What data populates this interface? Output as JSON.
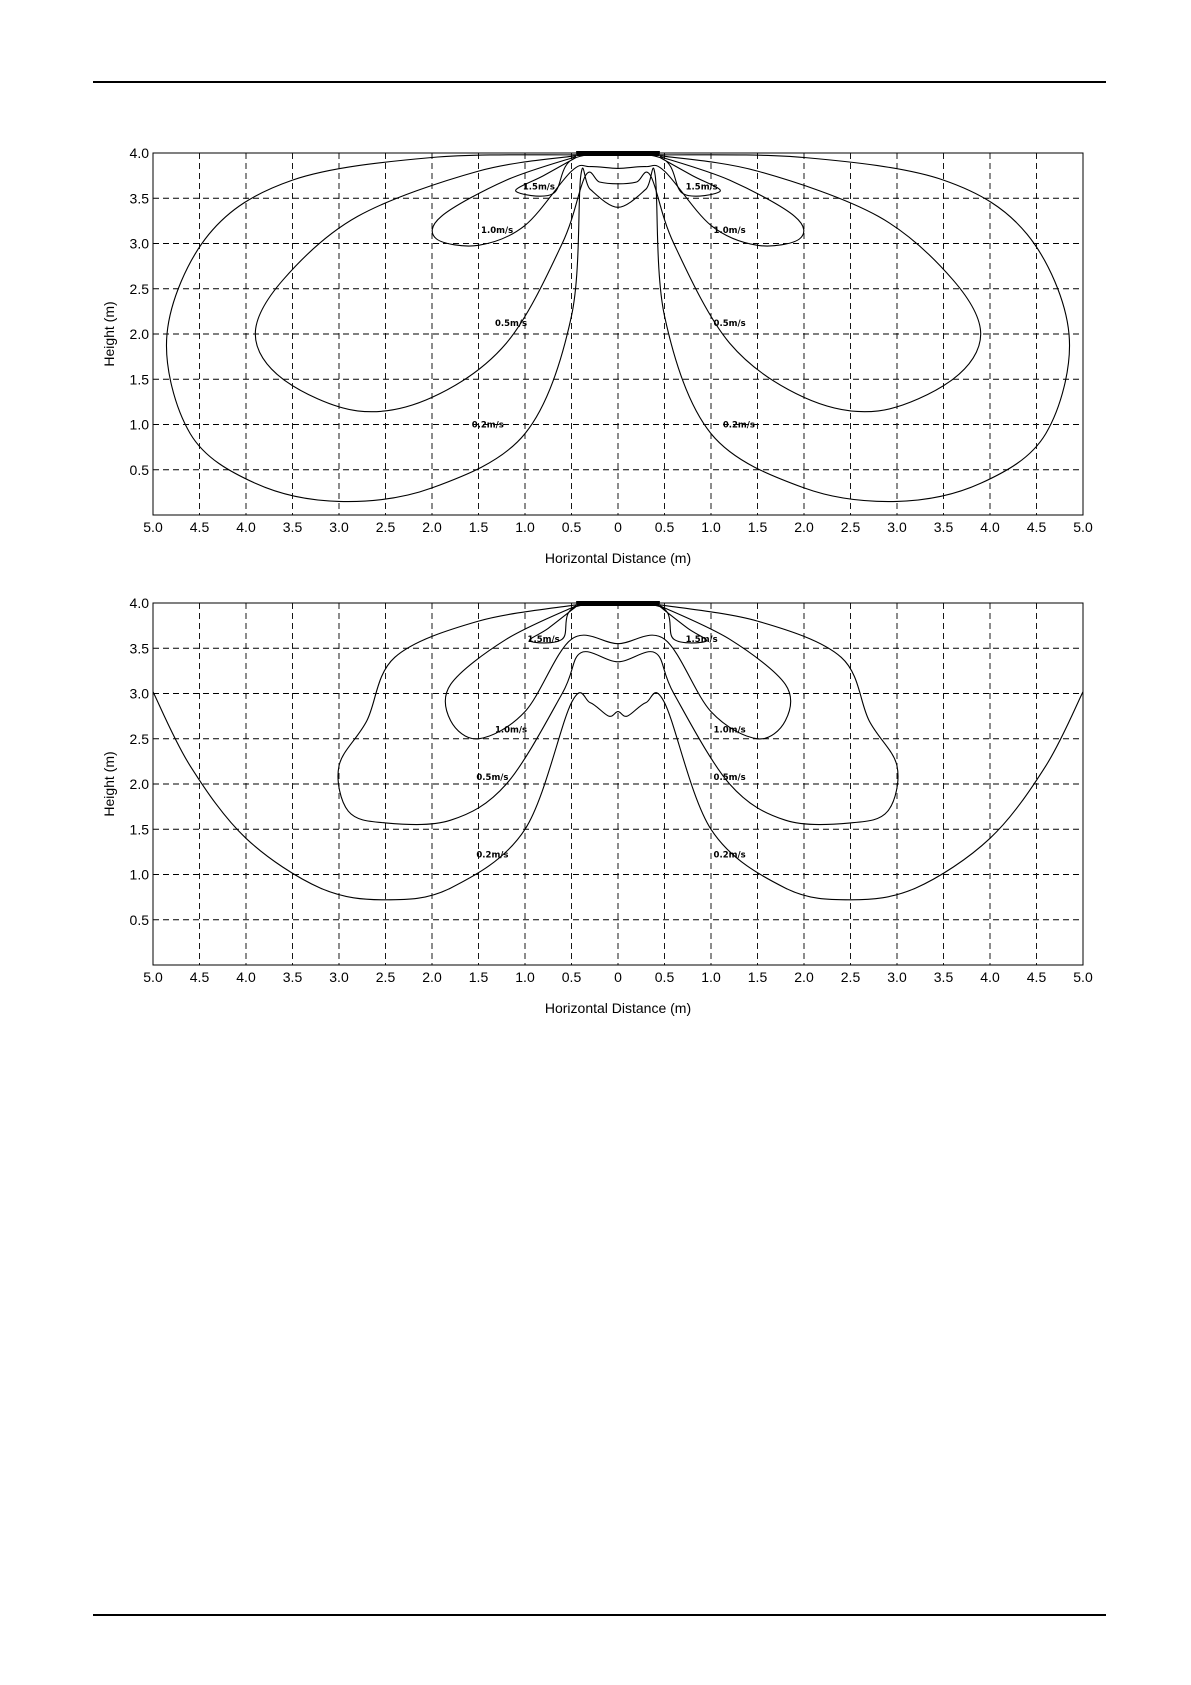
{
  "chart_data": [
    {
      "type": "line",
      "xlabel": "Horizontal Distance (m)",
      "ylabel": "Height (m)",
      "xlim": [
        -5.0,
        5.0
      ],
      "ylim": [
        0.0,
        4.0
      ],
      "grid": true,
      "x_tick_labels": [
        "5.0",
        "4.5",
        "4.0",
        "3.5",
        "3.0",
        "2.5",
        "2.0",
        "1.5",
        "1.0",
        "0.5",
        "0",
        "0.5",
        "1.0",
        "1.5",
        "2.0",
        "2.5",
        "3.0",
        "3.5",
        "4.0",
        "4.5",
        "5.0"
      ],
      "y_tick_labels": [
        "0.5",
        "1.0",
        "1.5",
        "2.0",
        "2.5",
        "3.0",
        "3.5",
        "4.0"
      ],
      "source_bar": {
        "x": [
          -0.45,
          0.45
        ],
        "y": 4.0
      },
      "contours": [
        {
          "label": "0.2m/s",
          "label_at": [
            [
              -1.4,
              1.0
            ],
            [
              1.3,
              1.0
            ]
          ],
          "points": [
            [
              -0.45,
              3.98
            ],
            [
              -2.0,
              3.95
            ],
            [
              -3.5,
              3.7
            ],
            [
              -4.4,
              3.1
            ],
            [
              -4.85,
              2.0
            ],
            [
              -4.6,
              0.9
            ],
            [
              -3.9,
              0.35
            ],
            [
              -3.0,
              0.15
            ],
            [
              -2.0,
              0.3
            ],
            [
              -1.0,
              0.9
            ],
            [
              -0.5,
              2.2
            ],
            [
              -0.4,
              3.75
            ],
            [
              -0.3,
              3.6
            ],
            [
              0,
              3.4
            ],
            [
              0.3,
              3.6
            ],
            [
              0.4,
              3.75
            ],
            [
              0.5,
              2.2
            ],
            [
              1.0,
              0.9
            ],
            [
              2.0,
              0.3
            ],
            [
              3.0,
              0.15
            ],
            [
              3.9,
              0.35
            ],
            [
              4.6,
              0.9
            ],
            [
              4.85,
              2.0
            ],
            [
              4.4,
              3.1
            ],
            [
              3.5,
              3.7
            ],
            [
              2.0,
              3.95
            ],
            [
              0.45,
              3.98
            ]
          ]
        },
        {
          "label": "0.5m/s",
          "label_at": [
            [
              -1.15,
              2.12
            ],
            [
              1.2,
              2.12
            ]
          ],
          "points": [
            [
              -0.45,
              3.97
            ],
            [
              -1.5,
              3.8
            ],
            [
              -2.8,
              3.3
            ],
            [
              -3.6,
              2.6
            ],
            [
              -3.9,
              2.0
            ],
            [
              -3.6,
              1.5
            ],
            [
              -2.8,
              1.15
            ],
            [
              -2.0,
              1.3
            ],
            [
              -1.2,
              1.9
            ],
            [
              -0.6,
              3.0
            ],
            [
              -0.35,
              3.75
            ],
            [
              -0.2,
              3.68
            ],
            [
              0,
              3.66
            ],
            [
              0.2,
              3.68
            ],
            [
              0.35,
              3.75
            ],
            [
              0.6,
              3.0
            ],
            [
              1.2,
              1.9
            ],
            [
              2.0,
              1.3
            ],
            [
              2.8,
              1.15
            ],
            [
              3.6,
              1.5
            ],
            [
              3.9,
              2.0
            ],
            [
              3.6,
              2.6
            ],
            [
              2.8,
              3.3
            ],
            [
              1.5,
              3.8
            ],
            [
              0.45,
              3.97
            ]
          ]
        },
        {
          "label": "1.0m/s",
          "label_at": [
            [
              -1.3,
              3.15
            ],
            [
              1.2,
              3.15
            ]
          ],
          "points": [
            [
              -0.45,
              3.96
            ],
            [
              -1.2,
              3.7
            ],
            [
              -1.9,
              3.3
            ],
            [
              -1.95,
              3.05
            ],
            [
              -1.5,
              2.98
            ],
            [
              -1.0,
              3.2
            ],
            [
              -0.5,
              3.8
            ],
            [
              -0.3,
              3.85
            ],
            [
              0,
              3.83
            ],
            [
              0.3,
              3.85
            ],
            [
              0.5,
              3.8
            ],
            [
              1.0,
              3.2
            ],
            [
              1.5,
              2.98
            ],
            [
              1.95,
              3.05
            ],
            [
              1.9,
              3.3
            ],
            [
              1.2,
              3.7
            ],
            [
              0.45,
              3.96
            ]
          ]
        },
        {
          "label": "1.5m/s",
          "label_at": [
            [
              -0.85,
              3.63
            ],
            [
              0.9,
              3.63
            ]
          ],
          "points": [
            [
              -0.45,
              3.95
            ],
            [
              -0.8,
              3.75
            ],
            [
              -1.1,
              3.58
            ],
            [
              -0.7,
              3.55
            ],
            [
              -0.45,
              3.95
            ],
            [
              0.45,
              3.95
            ],
            [
              0.7,
              3.55
            ],
            [
              1.1,
              3.58
            ],
            [
              0.8,
              3.75
            ],
            [
              0.45,
              3.95
            ]
          ]
        }
      ]
    },
    {
      "type": "line",
      "xlabel": "Horizontal Distance (m)",
      "ylabel": "Height (m)",
      "xlim": [
        -5.0,
        5.0
      ],
      "ylim": [
        0.0,
        4.0
      ],
      "grid": true,
      "x_tick_labels": [
        "5.0",
        "4.5",
        "4.0",
        "3.5",
        "3.0",
        "2.5",
        "2.0",
        "1.5",
        "1.0",
        "0.5",
        "0",
        "0.5",
        "1.0",
        "1.5",
        "2.0",
        "2.5",
        "3.0",
        "3.5",
        "4.0",
        "4.5",
        "5.0"
      ],
      "y_tick_labels": [
        "0.5",
        "1.0",
        "1.5",
        "2.0",
        "2.5",
        "3.0",
        "3.5",
        "4.0"
      ],
      "source_bar": {
        "x": [
          -0.45,
          0.45
        ],
        "y": 4.0
      },
      "contours": [
        {
          "label": "0.2m/s",
          "label_at": [
            [
              -1.35,
              1.22
            ],
            [
              1.2,
              1.22
            ]
          ],
          "points": [
            [
              -5.0,
              3.02
            ],
            [
              -4.6,
              2.2
            ],
            [
              -4.0,
              1.4
            ],
            [
              -3.2,
              0.85
            ],
            [
              -2.5,
              0.72
            ],
            [
              -1.8,
              0.85
            ],
            [
              -1.0,
              1.5
            ],
            [
              -0.5,
              2.9
            ],
            [
              -0.3,
              2.9
            ],
            [
              -0.1,
              2.75
            ],
            [
              0,
              2.8
            ],
            [
              0.1,
              2.75
            ],
            [
              0.3,
              2.9
            ],
            [
              0.5,
              2.9
            ],
            [
              1.0,
              1.5
            ],
            [
              1.8,
              0.85
            ],
            [
              2.5,
              0.72
            ],
            [
              3.2,
              0.85
            ],
            [
              4.0,
              1.4
            ],
            [
              4.6,
              2.2
            ],
            [
              5.0,
              3.02
            ]
          ]
        },
        {
          "label": "0.5m/s",
          "label_at": [
            [
              -1.35,
              2.08
            ],
            [
              1.2,
              2.08
            ]
          ],
          "points": [
            [
              -0.45,
              3.98
            ],
            [
              -1.5,
              3.8
            ],
            [
              -2.4,
              3.4
            ],
            [
              -2.7,
              2.7
            ],
            [
              -3.0,
              2.2
            ],
            [
              -2.9,
              1.7
            ],
            [
              -2.5,
              1.57
            ],
            [
              -1.8,
              1.6
            ],
            [
              -1.2,
              2.0
            ],
            [
              -0.6,
              3.0
            ],
            [
              -0.4,
              3.45
            ],
            [
              0,
              3.35
            ],
            [
              0.4,
              3.45
            ],
            [
              0.6,
              3.0
            ],
            [
              1.2,
              2.0
            ],
            [
              1.8,
              1.6
            ],
            [
              2.5,
              1.57
            ],
            [
              2.9,
              1.7
            ],
            [
              3.0,
              2.2
            ],
            [
              2.7,
              2.7
            ],
            [
              2.4,
              3.4
            ],
            [
              1.5,
              3.8
            ],
            [
              0.45,
              3.98
            ]
          ]
        },
        {
          "label": "1.0m/s",
          "label_at": [
            [
              -1.15,
              2.6
            ],
            [
              1.2,
              2.6
            ]
          ],
          "points": [
            [
              -0.45,
              3.97
            ],
            [
              -1.2,
              3.6
            ],
            [
              -1.8,
              3.1
            ],
            [
              -1.8,
              2.7
            ],
            [
              -1.5,
              2.5
            ],
            [
              -1.0,
              2.8
            ],
            [
              -0.5,
              3.6
            ],
            [
              0,
              3.55
            ],
            [
              0.5,
              3.6
            ],
            [
              1.0,
              2.8
            ],
            [
              1.5,
              2.5
            ],
            [
              1.8,
              2.7
            ],
            [
              1.8,
              3.1
            ],
            [
              1.2,
              3.6
            ],
            [
              0.45,
              3.97
            ]
          ]
        },
        {
          "label": "1.5m/s",
          "label_at": [
            [
              -0.8,
              3.6
            ],
            [
              0.9,
              3.6
            ]
          ],
          "points": [
            [
              -0.45,
              3.96
            ],
            [
              -0.75,
              3.72
            ],
            [
              -0.95,
              3.58
            ],
            [
              -0.6,
              3.6
            ],
            [
              -0.45,
              3.96
            ],
            [
              0.45,
              3.96
            ],
            [
              0.6,
              3.6
            ],
            [
              0.95,
              3.58
            ],
            [
              0.75,
              3.72
            ],
            [
              0.45,
              3.96
            ]
          ]
        }
      ]
    }
  ]
}
